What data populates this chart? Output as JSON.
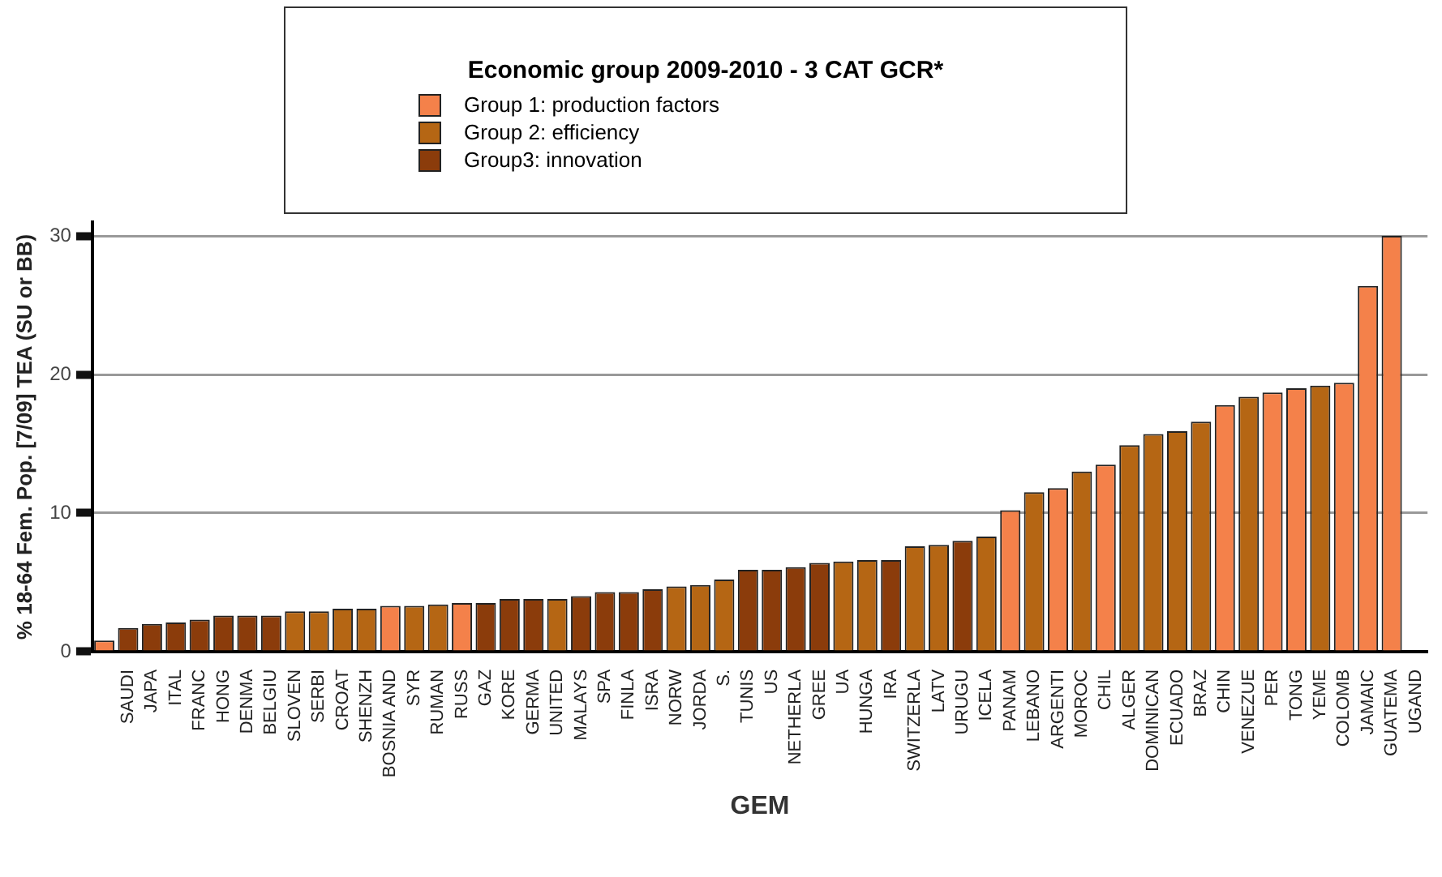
{
  "chart_data": {
    "type": "bar",
    "title": "Economic group 2009-2010 - 3 CAT GCR*",
    "xlabel": "GEM",
    "ylabel": "% 18-64 Fem. Pop. [7/09] TEA (SU or BB)",
    "categories": [
      null,
      "SAUDI",
      "JAPA",
      "ITAL",
      "FRANC",
      "HONG",
      "DENMA",
      "BELGIU",
      "SLOVEN",
      "SERBI",
      "CROAT",
      "SHENZH",
      "BOSNIA AND",
      "SYR",
      "RUMAN",
      "RUSS",
      "GAZ",
      "KORE",
      "GERMA",
      "UNITED",
      "MALAYS",
      "SPA",
      "FINLA",
      "ISRA",
      "NORW",
      "JORDA",
      "S.",
      "TUNIS",
      "US",
      "NETHERLA",
      "GREE",
      "UA",
      "HUNGA",
      "IRA",
      "SWITZERLA",
      "LATV",
      "URUGU",
      "ICELA",
      "PANAM",
      "LEBANO",
      "ARGENTI",
      "MOROC",
      "CHIL",
      "ALGER",
      "DOMINICAN",
      "ECUADO",
      "BRAZ",
      "CHIN",
      "VENEZUE",
      "PER",
      "TONG",
      "YEME",
      "COLOMB",
      "JAMAIC",
      "GUATEMA",
      "UGAND"
    ],
    "series": [
      {
        "name": "Group 1: production factors",
        "color": "#f4814a",
        "values": [
          0.8,
          null,
          null,
          null,
          null,
          null,
          null,
          null,
          null,
          null,
          null,
          null,
          3.3,
          null,
          null,
          3.5,
          null,
          null,
          null,
          null,
          null,
          null,
          null,
          null,
          null,
          null,
          null,
          null,
          null,
          null,
          null,
          null,
          null,
          null,
          null,
          null,
          null,
          null,
          10.2,
          null,
          11.8,
          null,
          13.5,
          null,
          null,
          null,
          null,
          17.8,
          null,
          18.7,
          19.0,
          null,
          19.4,
          26.4,
          30.0,
          null
        ]
      },
      {
        "name": "Group 2: efficiency",
        "color": "#b56614",
        "values": [
          null,
          null,
          null,
          null,
          null,
          null,
          null,
          null,
          2.9,
          2.9,
          3.1,
          3.1,
          null,
          3.3,
          3.4,
          null,
          null,
          null,
          null,
          3.8,
          null,
          null,
          null,
          null,
          4.7,
          4.8,
          5.2,
          null,
          null,
          null,
          null,
          6.5,
          6.6,
          null,
          7.6,
          7.7,
          null,
          8.3,
          null,
          11.5,
          null,
          13.0,
          null,
          14.9,
          15.7,
          15.9,
          16.6,
          null,
          18.4,
          null,
          null,
          19.2,
          null,
          null,
          null,
          null
        ]
      },
      {
        "name": "Group3:  innovation",
        "color": "#8b3c0b",
        "values": [
          null,
          1.7,
          2.0,
          2.1,
          2.3,
          2.6,
          2.6,
          2.6,
          null,
          null,
          null,
          null,
          null,
          null,
          null,
          null,
          3.5,
          3.8,
          3.8,
          null,
          4.0,
          4.3,
          4.3,
          4.5,
          null,
          null,
          null,
          5.9,
          5.9,
          6.1,
          6.4,
          null,
          null,
          6.6,
          null,
          null,
          8.0,
          null,
          null,
          null,
          null,
          null,
          null,
          null,
          null,
          null,
          null,
          null,
          null,
          null,
          null,
          null,
          null,
          null,
          null,
          null
        ]
      }
    ],
    "ylim": [
      0,
      31
    ],
    "yticks": [
      0,
      10,
      20,
      30
    ],
    "grid": "y",
    "legend": "top"
  }
}
